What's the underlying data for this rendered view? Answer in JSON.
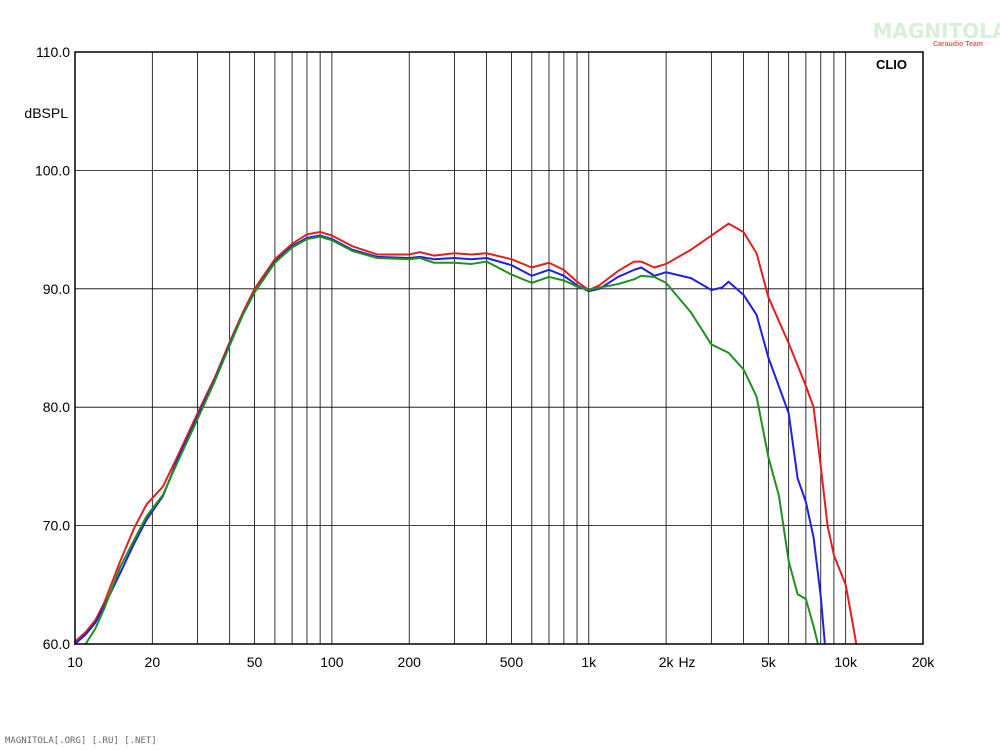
{
  "chart_data": {
    "type": "line",
    "brand_label": "CLIO",
    "watermark": "MAGNITOLA",
    "watermark_sub": "Caraudio Team",
    "footer": "MAGNITOLA[.ORG] [.RU] [.NET]",
    "ylabel": "dBSPL",
    "x_unit_label": "Hz",
    "x_scale": "log",
    "xlim": [
      10,
      20000
    ],
    "ylim": [
      60,
      110
    ],
    "grid": true,
    "y_ticks": [
      {
        "value": 60,
        "label": "60.0"
      },
      {
        "value": 70,
        "label": "70.0"
      },
      {
        "value": 80,
        "label": "80.0"
      },
      {
        "value": 90,
        "label": "90.0"
      },
      {
        "value": 100,
        "label": "100.0"
      },
      {
        "value": 110,
        "label": "110.0"
      }
    ],
    "x_ticks": [
      {
        "value": 10,
        "label": "10"
      },
      {
        "value": 20,
        "label": "20"
      },
      {
        "value": 50,
        "label": "50"
      },
      {
        "value": 100,
        "label": "100"
      },
      {
        "value": 200,
        "label": "200"
      },
      {
        "value": 500,
        "label": "500"
      },
      {
        "value": 1000,
        "label": "1k"
      },
      {
        "value": 2000,
        "label": "2k"
      },
      {
        "value": 5000,
        "label": "5k"
      },
      {
        "value": 10000,
        "label": "10k"
      },
      {
        "value": 20000,
        "label": "20k"
      }
    ],
    "series": [
      {
        "color": "#e02020",
        "x": [
          10,
          11,
          12,
          13,
          15,
          17,
          19,
          22,
          25,
          30,
          35,
          40,
          45,
          50,
          60,
          70,
          80,
          90,
          100,
          120,
          150,
          200,
          220,
          250,
          300,
          350,
          400,
          500,
          600,
          700,
          800,
          900,
          1000,
          1100,
          1300,
          1500,
          1600,
          1800,
          2000,
          2500,
          3000,
          3500,
          4000,
          4500,
          5000,
          6000,
          7000,
          7500,
          8000,
          8500,
          9000,
          10000,
          10500,
          11000
        ],
        "y": [
          60.2,
          61.0,
          62.0,
          63.5,
          67.0,
          69.8,
          71.8,
          73.3,
          75.8,
          79.5,
          82.5,
          85.5,
          88.0,
          90.0,
          92.5,
          93.8,
          94.6,
          94.8,
          94.5,
          93.6,
          92.9,
          92.9,
          93.1,
          92.8,
          93.0,
          92.9,
          93.0,
          92.5,
          91.8,
          92.2,
          91.6,
          90.6,
          89.9,
          90.3,
          91.5,
          92.3,
          92.3,
          91.8,
          92.1,
          93.3,
          94.5,
          95.5,
          94.8,
          93.0,
          89.3,
          85.4,
          81.8,
          80.0,
          75.0,
          70.0,
          67.5,
          65.0,
          62.5,
          60.0
        ]
      },
      {
        "color": "#2020e0",
        "x": [
          10,
          11,
          12,
          13,
          15,
          17,
          19,
          22,
          25,
          30,
          35,
          40,
          45,
          50,
          60,
          70,
          80,
          90,
          100,
          120,
          150,
          200,
          220,
          250,
          300,
          350,
          400,
          500,
          600,
          700,
          800,
          900,
          1000,
          1100,
          1300,
          1500,
          1600,
          1800,
          2000,
          2500,
          3000,
          3300,
          3500,
          4000,
          4500,
          5000,
          6000,
          6500,
          7000,
          7500,
          8000,
          8300
        ],
        "y": [
          60.0,
          60.8,
          61.8,
          63.2,
          66.0,
          68.5,
          70.5,
          72.5,
          75.5,
          79.2,
          82.3,
          85.3,
          87.8,
          89.7,
          92.3,
          93.6,
          94.3,
          94.5,
          94.2,
          93.3,
          92.7,
          92.6,
          92.7,
          92.5,
          92.6,
          92.5,
          92.6,
          92.0,
          91.1,
          91.6,
          91.1,
          90.3,
          89.8,
          90.0,
          91.0,
          91.6,
          91.8,
          91.1,
          91.4,
          90.9,
          89.9,
          90.1,
          90.6,
          89.5,
          87.8,
          84.2,
          79.5,
          74.0,
          72.0,
          69.0,
          64.0,
          60.0
        ]
      },
      {
        "color": "#209020",
        "x": [
          11,
          12,
          13,
          15,
          17,
          19,
          22,
          25,
          30,
          35,
          40,
          45,
          50,
          60,
          70,
          80,
          90,
          100,
          120,
          150,
          200,
          220,
          250,
          300,
          350,
          400,
          500,
          600,
          700,
          800,
          900,
          1000,
          1100,
          1300,
          1500,
          1600,
          1800,
          2000,
          2500,
          3000,
          3500,
          4000,
          4500,
          5000,
          5500,
          6000,
          6500,
          7000,
          7500,
          7800
        ],
        "y": [
          60.0,
          61.3,
          63.0,
          66.5,
          68.8,
          70.8,
          72.6,
          75.3,
          79.0,
          82.2,
          85.2,
          87.8,
          89.7,
          92.2,
          93.5,
          94.2,
          94.4,
          94.1,
          93.2,
          92.6,
          92.5,
          92.6,
          92.2,
          92.2,
          92.1,
          92.3,
          91.2,
          90.5,
          91.0,
          90.7,
          90.2,
          89.9,
          90.1,
          90.4,
          90.8,
          91.1,
          91.0,
          90.5,
          88.0,
          85.3,
          84.6,
          83.2,
          80.9,
          75.8,
          72.5,
          67.0,
          64.2,
          63.8,
          61.5,
          60.0
        ]
      }
    ]
  }
}
